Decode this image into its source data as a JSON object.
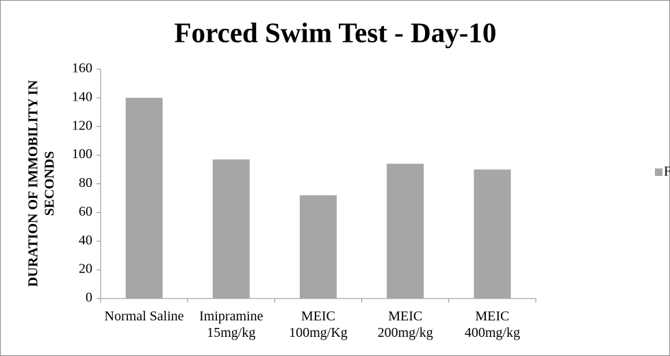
{
  "chart_data": {
    "type": "bar",
    "title": "Forced Swim Test - Day-10",
    "ylabel": [
      "DURATION OF IMMOBILITY IN",
      "SECONDS"
    ],
    "categories": [
      "Normal Saline",
      "Imipramine 15mg/kg",
      "MEIC 100mg/Kg",
      "MEIC 200mg/kg",
      "MEIC 400mg/kg"
    ],
    "series": [
      {
        "name": "Forced Swim Test",
        "color": "#a6a6a6",
        "values": [
          140,
          97,
          72,
          94,
          90
        ]
      }
    ],
    "ylim": [
      0,
      160
    ],
    "yticks": [
      0,
      20,
      40,
      60,
      80,
      100,
      120,
      140,
      160
    ],
    "grid": false,
    "legend": "right"
  }
}
